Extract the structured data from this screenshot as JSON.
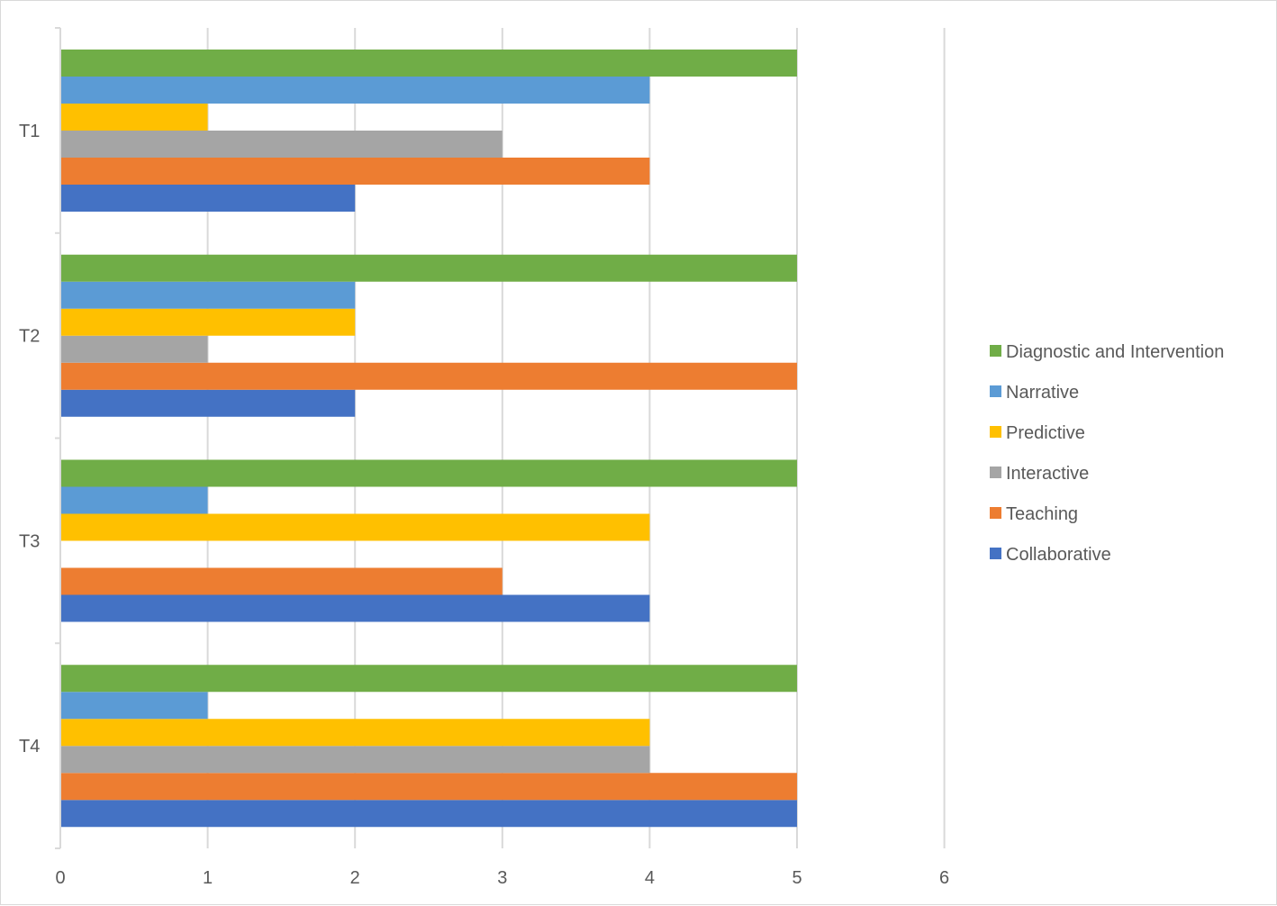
{
  "chart_data": {
    "type": "bar",
    "orientation": "horizontal",
    "title": "",
    "xlabel": "",
    "ylabel": "",
    "xlim": [
      0,
      6
    ],
    "x_ticks": [
      0,
      1,
      2,
      3,
      4,
      5,
      6
    ],
    "grid": true,
    "legend_position": "right",
    "categories": [
      "T1",
      "T2",
      "T3",
      "T4"
    ],
    "series": [
      {
        "name": "Collaborative",
        "color": "#4472C4",
        "values": [
          2,
          2,
          4,
          5
        ]
      },
      {
        "name": "Teaching",
        "color": "#ED7D31",
        "values": [
          4,
          5,
          3,
          5
        ]
      },
      {
        "name": "Interactive",
        "color": "#A5A5A5",
        "values": [
          3,
          1,
          0,
          4
        ]
      },
      {
        "name": "Predictive",
        "color": "#FFC000",
        "values": [
          1,
          2,
          4,
          4
        ]
      },
      {
        "name": "Narrative",
        "color": "#5B9BD5",
        "values": [
          4,
          2,
          1,
          1
        ]
      },
      {
        "name": "Diagnostic and Intervention",
        "color": "#70AD47",
        "values": [
          5,
          5,
          5,
          5
        ]
      }
    ]
  }
}
